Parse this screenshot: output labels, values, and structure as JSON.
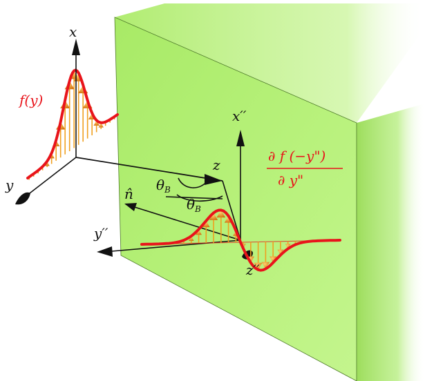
{
  "labels": {
    "axis_x": "x",
    "axis_y": "y",
    "axis_z": "z",
    "axis_x2": "x′′",
    "axis_y2": "y′′",
    "axis_z2": "z′′",
    "normal": "n̂",
    "angle1": "θB",
    "angle2": "θB",
    "f_label": "f(y)",
    "deriv_numerator": "∂ f (−y\")",
    "deriv_denominator": "∂ y\""
  },
  "colors": {
    "panel_front": "#b7f07a",
    "panel_side": "#9bdc5a",
    "curve": "#e8141b",
    "arrows": "#f0a020",
    "axes": "#111111"
  }
}
